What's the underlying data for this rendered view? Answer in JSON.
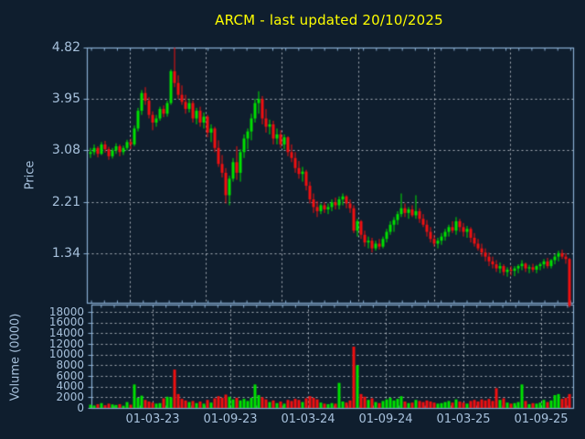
{
  "title": {
    "text": "ARCM - last updated 20/10/2025"
  },
  "colors": {
    "background": "#0f1e2e",
    "title": "#ffff00",
    "axis_frame": "#89aed2",
    "tick_text": "#a7c1dc",
    "grid": "#cfd6dd",
    "candle_up": "#00e000",
    "candle_down": "#ef1010"
  },
  "price_panel": {
    "axis_label": "Price",
    "tick_labels": [
      "4.82",
      "3.95",
      "3.08",
      "2.21",
      "1.34"
    ]
  },
  "volume_panel": {
    "axis_label": "Volume (0000)",
    "tick_labels": [
      "18000",
      "16000",
      "14000",
      "12000",
      "10000",
      "8000",
      "6000",
      "4000",
      "2000",
      "0"
    ]
  },
  "x_axis": {
    "tick_labels": [
      "01-03-23",
      "01-09-23",
      "01-03-24",
      "01-09-24",
      "01-03-25",
      "01-09-25"
    ]
  },
  "chart_data": {
    "type": "candlestick",
    "title": "ARCM - last updated 20/10/2025",
    "ylabel_price": "Price",
    "ylabel_volume": "Volume (0000)",
    "price_ylim": [
      0.5,
      4.82
    ],
    "price_yticks": [
      4.82,
      3.95,
      3.08,
      2.21,
      1.34
    ],
    "volume_ylim": [
      0,
      19400
    ],
    "volume_yticks": [
      18000,
      16000,
      14000,
      12000,
      10000,
      8000,
      6000,
      4000,
      2000,
      0
    ],
    "x_tick_labels": [
      "01-03-23",
      "01-09-23",
      "01-03-24",
      "01-09-24",
      "01-03-25",
      "01-09-25"
    ],
    "grid": true,
    "legend": false,
    "candles_format": [
      "open",
      "high",
      "low",
      "close",
      "volume"
    ],
    "candles": [
      [
        3.02,
        3.12,
        2.95,
        3.05,
        600
      ],
      [
        3.05,
        3.18,
        3.0,
        3.12,
        450
      ],
      [
        3.12,
        3.15,
        2.96,
        3.02,
        700
      ],
      [
        3.02,
        3.22,
        3.0,
        3.18,
        900
      ],
      [
        3.18,
        3.24,
        3.04,
        3.1,
        500
      ],
      [
        3.1,
        3.14,
        2.92,
        2.98,
        800
      ],
      [
        2.98,
        3.12,
        2.94,
        3.08,
        650
      ],
      [
        3.08,
        3.2,
        3.02,
        3.15,
        550
      ],
      [
        3.15,
        3.18,
        2.98,
        3.05,
        700
      ],
      [
        3.05,
        3.16,
        3.0,
        3.12,
        400
      ],
      [
        3.12,
        3.26,
        3.08,
        3.22,
        1100
      ],
      [
        3.22,
        3.28,
        3.1,
        3.18,
        600
      ],
      [
        3.18,
        3.5,
        3.15,
        3.45,
        4400
      ],
      [
        3.45,
        3.8,
        3.4,
        3.75,
        1900
      ],
      [
        3.75,
        4.1,
        3.68,
        4.05,
        2300
      ],
      [
        4.05,
        4.15,
        3.85,
        3.92,
        1500
      ],
      [
        3.92,
        3.98,
        3.62,
        3.68,
        1200
      ],
      [
        3.68,
        3.74,
        3.42,
        3.55,
        1000
      ],
      [
        3.55,
        3.68,
        3.48,
        3.62,
        800
      ],
      [
        3.62,
        3.82,
        3.58,
        3.78,
        900
      ],
      [
        3.78,
        3.84,
        3.64,
        3.7,
        1800
      ],
      [
        3.7,
        3.92,
        3.65,
        3.88,
        2100
      ],
      [
        3.88,
        4.45,
        3.85,
        4.42,
        2000
      ],
      [
        4.42,
        4.82,
        4.15,
        4.22,
        7200
      ],
      [
        4.22,
        4.35,
        3.95,
        4.02,
        2600
      ],
      [
        4.02,
        4.18,
        3.85,
        3.9,
        1700
      ],
      [
        3.9,
        4.02,
        3.7,
        3.78,
        1400
      ],
      [
        3.78,
        3.95,
        3.72,
        3.88,
        1100
      ],
      [
        3.88,
        3.92,
        3.55,
        3.62,
        1300
      ],
      [
        3.62,
        3.8,
        3.52,
        3.75,
        900
      ],
      [
        3.75,
        3.82,
        3.48,
        3.55,
        1200
      ],
      [
        3.55,
        3.72,
        3.45,
        3.65,
        800
      ],
      [
        3.65,
        3.68,
        3.3,
        3.38,
        1500
      ],
      [
        3.38,
        3.52,
        3.22,
        3.45,
        1000
      ],
      [
        3.45,
        3.48,
        3.05,
        3.12,
        1800
      ],
      [
        3.12,
        3.25,
        2.8,
        2.85,
        2200
      ],
      [
        2.85,
        3.0,
        2.62,
        2.7,
        1900
      ],
      [
        2.7,
        2.78,
        2.18,
        2.32,
        2500
      ],
      [
        2.32,
        2.65,
        2.15,
        2.6,
        2100
      ],
      [
        2.6,
        2.95,
        2.55,
        2.88,
        1600
      ],
      [
        2.88,
        3.15,
        2.58,
        2.7,
        1900
      ],
      [
        2.7,
        3.1,
        2.55,
        3.05,
        1400
      ],
      [
        3.05,
        3.35,
        2.95,
        3.28,
        1700
      ],
      [
        3.28,
        3.45,
        3.1,
        3.4,
        1300
      ],
      [
        3.4,
        3.7,
        3.25,
        3.62,
        1900
      ],
      [
        3.62,
        3.95,
        3.55,
        3.88,
        4400
      ],
      [
        3.88,
        4.08,
        3.7,
        3.95,
        2400
      ],
      [
        3.95,
        4.0,
        3.52,
        3.62,
        2000
      ],
      [
        3.62,
        3.78,
        3.38,
        3.48,
        1600
      ],
      [
        3.48,
        3.6,
        3.35,
        3.52,
        1100
      ],
      [
        3.52,
        3.58,
        3.18,
        3.28,
        1400
      ],
      [
        3.28,
        3.45,
        3.18,
        3.35,
        900
      ],
      [
        3.35,
        3.42,
        3.12,
        3.18,
        1200
      ],
      [
        3.18,
        3.35,
        3.1,
        3.3,
        800
      ],
      [
        3.3,
        3.32,
        2.98,
        3.05,
        1500
      ],
      [
        3.05,
        3.18,
        2.88,
        2.95,
        1300
      ],
      [
        2.95,
        3.05,
        2.7,
        2.78,
        1700
      ],
      [
        2.78,
        2.9,
        2.6,
        2.68,
        1500
      ],
      [
        2.68,
        2.8,
        2.55,
        2.72,
        1100
      ],
      [
        2.72,
        2.75,
        2.4,
        2.48,
        1800
      ],
      [
        2.48,
        2.55,
        2.18,
        2.25,
        2200
      ],
      [
        2.25,
        2.35,
        2.02,
        2.12,
        1900
      ],
      [
        2.12,
        2.22,
        1.95,
        2.05,
        1600
      ],
      [
        2.05,
        2.18,
        2.0,
        2.15,
        1000
      ],
      [
        2.15,
        2.2,
        2.02,
        2.08,
        800
      ],
      [
        2.08,
        2.18,
        2.0,
        2.12,
        700
      ],
      [
        2.12,
        2.25,
        2.05,
        2.2,
        900
      ],
      [
        2.2,
        2.28,
        2.08,
        2.15,
        800
      ],
      [
        2.15,
        2.3,
        2.08,
        2.25,
        4700
      ],
      [
        2.25,
        2.35,
        2.15,
        2.3,
        1200
      ],
      [
        2.3,
        2.32,
        2.1,
        2.18,
        1000
      ],
      [
        2.18,
        2.25,
        2.02,
        2.1,
        1400
      ],
      [
        2.1,
        2.15,
        1.68,
        1.72,
        11500
      ],
      [
        1.72,
        1.92,
        1.62,
        1.88,
        8000
      ],
      [
        1.88,
        1.9,
        1.58,
        1.65,
        2600
      ],
      [
        1.65,
        1.72,
        1.45,
        1.52,
        2100
      ],
      [
        1.52,
        1.62,
        1.42,
        1.55,
        1500
      ],
      [
        1.55,
        1.6,
        1.35,
        1.42,
        1800
      ],
      [
        1.42,
        1.55,
        1.38,
        1.5,
        1100
      ],
      [
        1.5,
        1.58,
        1.4,
        1.45,
        900
      ],
      [
        1.45,
        1.62,
        1.42,
        1.58,
        1300
      ],
      [
        1.58,
        1.75,
        1.52,
        1.7,
        1600
      ],
      [
        1.7,
        1.88,
        1.65,
        1.82,
        1900
      ],
      [
        1.82,
        1.95,
        1.7,
        1.9,
        1400
      ],
      [
        1.9,
        2.05,
        1.82,
        2.0,
        1700
      ],
      [
        2.0,
        2.35,
        1.95,
        2.1,
        2200
      ],
      [
        2.1,
        2.18,
        1.95,
        2.02,
        1200
      ],
      [
        2.02,
        2.12,
        1.92,
        2.08,
        900
      ],
      [
        2.08,
        2.15,
        1.95,
        1.98,
        1000
      ],
      [
        1.98,
        2.32,
        1.92,
        2.05,
        1500
      ],
      [
        2.05,
        2.1,
        1.85,
        1.92,
        1300
      ],
      [
        1.92,
        2.0,
        1.78,
        1.82,
        1100
      ],
      [
        1.82,
        1.9,
        1.62,
        1.7,
        1400
      ],
      [
        1.7,
        1.78,
        1.52,
        1.58,
        1200
      ],
      [
        1.58,
        1.65,
        1.45,
        1.5,
        1000
      ],
      [
        1.5,
        1.6,
        1.42,
        1.55,
        800
      ],
      [
        1.55,
        1.68,
        1.48,
        1.62,
        900
      ],
      [
        1.62,
        1.75,
        1.55,
        1.7,
        1100
      ],
      [
        1.7,
        1.82,
        1.62,
        1.78,
        1300
      ],
      [
        1.78,
        1.88,
        1.68,
        1.72,
        1000
      ],
      [
        1.72,
        1.95,
        1.65,
        1.88,
        1600
      ],
      [
        1.88,
        1.92,
        1.7,
        1.78,
        1200
      ],
      [
        1.78,
        1.85,
        1.62,
        1.7,
        1000
      ],
      [
        1.7,
        1.8,
        1.6,
        1.75,
        800
      ],
      [
        1.75,
        1.78,
        1.52,
        1.6,
        1300
      ],
      [
        1.6,
        1.68,
        1.45,
        1.5,
        1500
      ],
      [
        1.5,
        1.58,
        1.38,
        1.42,
        1200
      ],
      [
        1.42,
        1.5,
        1.28,
        1.35,
        1600
      ],
      [
        1.35,
        1.42,
        1.2,
        1.28,
        1400
      ],
      [
        1.28,
        1.35,
        1.12,
        1.2,
        1700
      ],
      [
        1.2,
        1.28,
        1.08,
        1.15,
        1300
      ],
      [
        1.15,
        1.22,
        1.02,
        1.08,
        3700
      ],
      [
        1.08,
        1.18,
        1.0,
        1.12,
        1500
      ],
      [
        1.12,
        1.15,
        0.96,
        1.02,
        1800
      ],
      [
        1.02,
        1.1,
        0.94,
        1.06,
        1000
      ],
      [
        1.06,
        1.12,
        0.96,
        1.04,
        800
      ],
      [
        1.04,
        1.12,
        0.95,
        1.08,
        900
      ],
      [
        1.08,
        1.15,
        1.0,
        1.12,
        1100
      ],
      [
        1.12,
        1.22,
        1.05,
        1.16,
        4400
      ],
      [
        1.16,
        1.18,
        1.02,
        1.08,
        1300
      ],
      [
        1.08,
        1.14,
        1.0,
        1.1,
        700
      ],
      [
        1.1,
        1.16,
        1.02,
        1.06,
        900
      ],
      [
        1.06,
        1.14,
        1.0,
        1.12,
        800
      ],
      [
        1.12,
        1.18,
        1.05,
        1.15,
        1000
      ],
      [
        1.15,
        1.24,
        1.08,
        1.2,
        1500
      ],
      [
        1.2,
        1.26,
        1.08,
        1.12,
        1100
      ],
      [
        1.12,
        1.24,
        1.08,
        1.22,
        1400
      ],
      [
        1.22,
        1.32,
        1.15,
        1.28,
        2400
      ],
      [
        1.28,
        1.38,
        1.2,
        1.34,
        2600
      ],
      [
        1.34,
        1.4,
        1.24,
        1.28,
        1700
      ],
      [
        1.28,
        1.34,
        1.16,
        1.24,
        1900
      ],
      [
        1.24,
        1.26,
        0.42,
        0.45,
        2600
      ]
    ]
  }
}
